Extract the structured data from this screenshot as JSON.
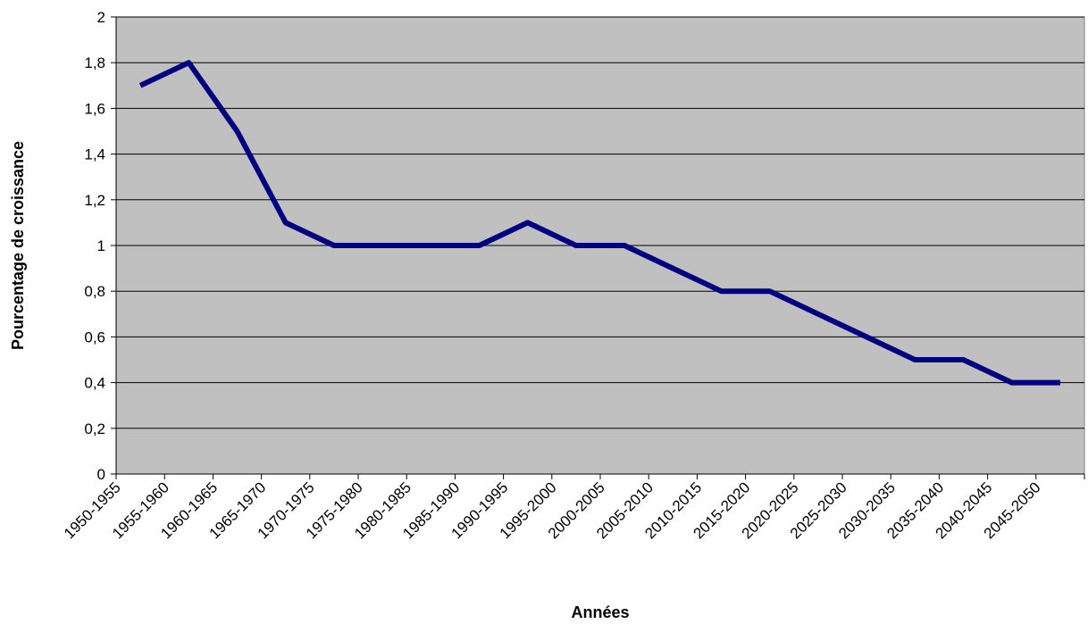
{
  "chart_data": {
    "type": "line",
    "title": "",
    "xlabel": "Années",
    "ylabel": "Pourcentage de croissance",
    "categories": [
      "1950-1955",
      "1955-1960",
      "1960-1965",
      "1965-1970",
      "1970-1975",
      "1975-1980",
      "1980-1985",
      "1985-1990",
      "1990-1995",
      "1995-2000",
      "2000-2005",
      "2005-2010",
      "2010-2015",
      "2015-2020",
      "2020-2025",
      "2025-2030",
      "2030-2035",
      "2035-2040",
      "2040-2045",
      "2045-2050"
    ],
    "yticks": [
      "0",
      "0,2",
      "0,4",
      "0,6",
      "0,8",
      "1",
      "1,2",
      "1,4",
      "1,6",
      "1,8",
      "2"
    ],
    "ylim": [
      0,
      2
    ],
    "grid": true,
    "legend": "none",
    "series": [
      {
        "values": [
          1.7,
          1.8,
          1.5,
          1.1,
          1.0,
          1.0,
          1.0,
          1.0,
          1.1,
          1.0,
          1.0,
          0.9,
          0.8,
          0.8,
          0.7,
          0.6,
          0.5,
          0.5,
          0.4,
          0.4
        ],
        "color": "#000080"
      }
    ],
    "colors": {
      "plot_bg": "#c0c0c0",
      "grid": "#000000",
      "line": "#000080"
    }
  }
}
